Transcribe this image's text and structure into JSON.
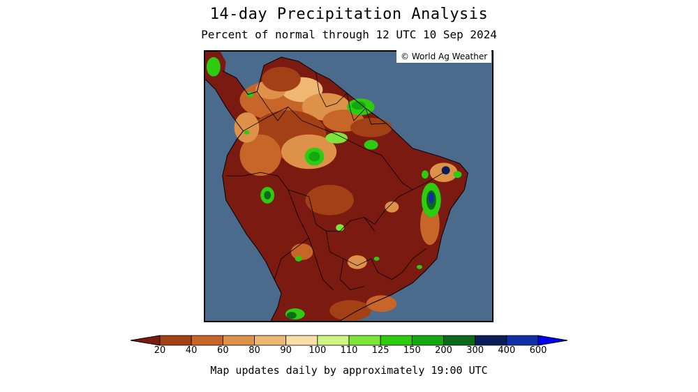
{
  "title": "14-day Precipitation Analysis",
  "subtitle": "Percent of normal through 12 UTC 10 Sep 2024",
  "credit": "© World Ag Weather",
  "footer": "Map updates daily by approximately 19:00 UTC",
  "map": {
    "region": "South America (northern and central)",
    "ocean_color": "#4a6b8c",
    "background_category_color": "#7a1a10"
  },
  "legend": {
    "unit": "percent of normal",
    "ticks": [
      "20",
      "40",
      "60",
      "80",
      "90",
      "100",
      "110",
      "125",
      "150",
      "200",
      "300",
      "400",
      "600"
    ],
    "colors": [
      "#7a1a10",
      "#a34015",
      "#c8662a",
      "#dd9149",
      "#efb872",
      "#f9dfa6",
      "#ccf582",
      "#7ee63a",
      "#2ecc10",
      "#11a810",
      "#0a6a1a",
      "#0c1e5a",
      "#1030a8",
      "#0000f0"
    ]
  }
}
